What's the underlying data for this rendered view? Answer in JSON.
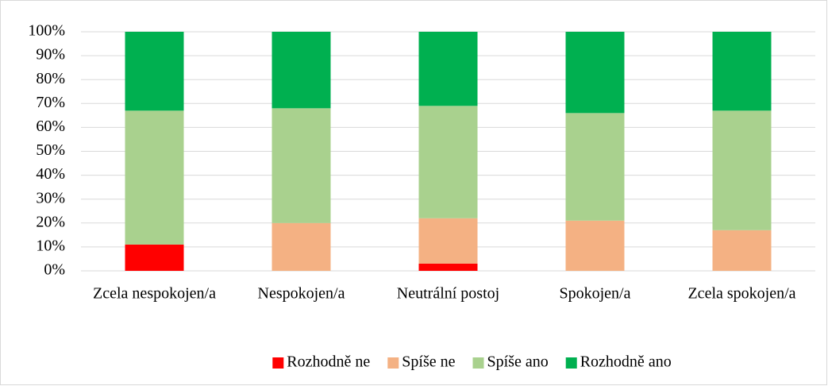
{
  "chart_data": {
    "type": "stacked_bar",
    "categories": [
      "Zcela nespokojen/a",
      "Nespokojen/a",
      "Neutrální postoj",
      "Spokojen/a",
      "Zcela spokojen/a"
    ],
    "series": [
      {
        "name": "Rozhodně ne",
        "color": "#ff0000",
        "values": [
          11,
          0,
          3,
          0,
          0
        ]
      },
      {
        "name": "Spíše ne",
        "color": "#f4b183",
        "values": [
          0,
          20,
          19,
          21,
          17
        ]
      },
      {
        "name": "Spíše ano",
        "color": "#a9d18e",
        "values": [
          56,
          48,
          47,
          45,
          50
        ]
      },
      {
        "name": "Rozhodně ano",
        "color": "#00b050",
        "values": [
          33,
          32,
          31,
          34,
          33
        ]
      }
    ],
    "ylim": [
      0,
      100
    ],
    "yticks": [
      {
        "value": 0,
        "label": "0%"
      },
      {
        "value": 10,
        "label": "10%"
      },
      {
        "value": 20,
        "label": "20%"
      },
      {
        "value": 30,
        "label": "30%"
      },
      {
        "value": 40,
        "label": "40%"
      },
      {
        "value": 50,
        "label": "50%"
      },
      {
        "value": 60,
        "label": "60%"
      },
      {
        "value": 70,
        "label": "70%"
      },
      {
        "value": 80,
        "label": "80%"
      },
      {
        "value": 90,
        "label": "90%"
      },
      {
        "value": 100,
        "label": "100%"
      }
    ],
    "grid": true,
    "legend": "bottom"
  }
}
